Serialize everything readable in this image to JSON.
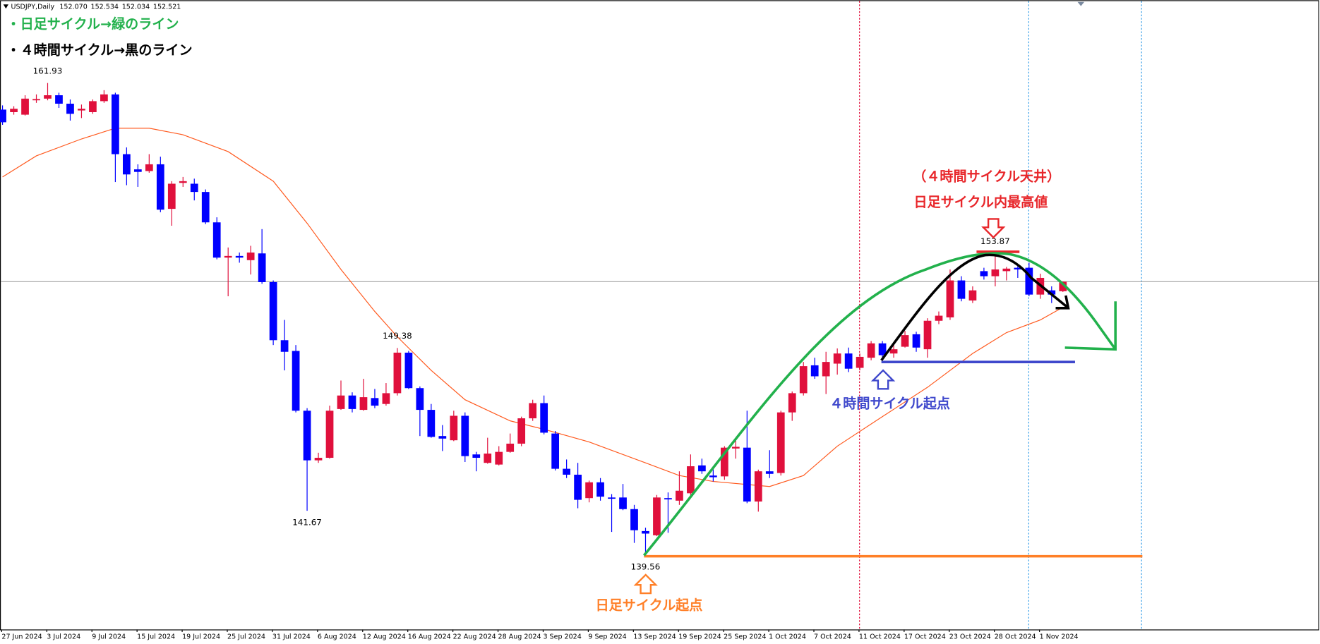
{
  "chart_data": {
    "type": "candlestick",
    "symbol": "USDJPY,Daily",
    "quote_labels": [
      "152.070",
      "152.534",
      "152.034",
      "152.521"
    ],
    "legend_daily": "・日足サイクル→緑のライン",
    "legend_4h": "・４時間サイクル→黒のライン",
    "annotation_top_paren": "（４時間サイクル天井）",
    "annotation_top": "日足サイクル内最高値",
    "annotation_4h_start": "４時間サイクル起点",
    "annotation_daily_start": "日足サイクル起点",
    "up_color": "#e0103c",
    "down_color": "#0000ff",
    "ylim": [
      136.05,
      165.85
    ],
    "categories": [
      "27 Jun 2024",
      null,
      null,
      null,
      "3 Jul 2024",
      null,
      null,
      null,
      "9 Jul 2024",
      null,
      null,
      null,
      "15 Jul 2024",
      null,
      null,
      null,
      "19 Jul 2024",
      null,
      null,
      null,
      "25 Jul 2024",
      null,
      null,
      null,
      "31 Jul 2024",
      null,
      null,
      null,
      "6 Aug 2024",
      null,
      null,
      null,
      "12 Aug 2024",
      null,
      null,
      null,
      "16 Aug 2024",
      null,
      null,
      null,
      "22 Aug 2024",
      null,
      null,
      null,
      "28 Aug 2024",
      null,
      null,
      null,
      "3 Sep 2024",
      null,
      null,
      null,
      "9 Sep 2024",
      null,
      null,
      null,
      "13 Sep 2024",
      null,
      null,
      null,
      "19 Sep 2024",
      null,
      null,
      null,
      "25 Sep 2024",
      null,
      null,
      null,
      "1 Oct 2024",
      null,
      null,
      null,
      "7 Oct 2024",
      null,
      null,
      null,
      "11 Oct 2024",
      null,
      null,
      null,
      "17 Oct 2024",
      null,
      null,
      null,
      "23 Oct 2024",
      null,
      null,
      null,
      "28 Oct 2024",
      null,
      null,
      null,
      "1 Nov 2024",
      null,
      null
    ],
    "ohlc": [
      [
        160.67,
        160.87,
        159.95,
        160.07
      ],
      [
        160.55,
        160.83,
        160.43,
        160.71
      ],
      [
        160.43,
        161.35,
        160.39,
        161.19
      ],
      [
        161.15,
        161.39,
        160.99,
        161.17
      ],
      [
        161.19,
        161.93,
        161.11,
        161.35
      ],
      [
        161.35,
        161.47,
        160.75,
        160.95
      ],
      [
        160.95,
        161.15,
        160.15,
        160.47
      ],
      [
        160.63,
        160.91,
        160.27,
        160.71
      ],
      [
        160.55,
        161.15,
        160.47,
        161.07
      ],
      [
        161.07,
        161.59,
        160.99,
        161.39
      ],
      [
        161.39,
        161.47,
        157.24,
        158.56
      ],
      [
        158.56,
        158.88,
        157.09,
        157.6
      ],
      [
        157.84,
        158.08,
        157.01,
        157.72
      ],
      [
        157.76,
        158.56,
        157.68,
        158.08
      ],
      [
        158.08,
        158.44,
        155.81,
        155.93
      ],
      [
        155.97,
        157.28,
        155.17,
        157.16
      ],
      [
        157.2,
        157.48,
        157.01,
        157.28
      ],
      [
        157.16,
        157.4,
        156.37,
        156.77
      ],
      [
        156.77,
        156.89,
        155.25,
        155.33
      ],
      [
        155.33,
        155.57,
        153.58,
        153.66
      ],
      [
        153.66,
        154.14,
        151.83,
        153.74
      ],
      [
        153.74,
        153.9,
        153.42,
        153.66
      ],
      [
        153.54,
        154.22,
        152.86,
        153.9
      ],
      [
        153.86,
        155.01,
        152.42,
        152.5
      ],
      [
        152.5,
        152.58,
        149.52,
        149.75
      ],
      [
        149.75,
        150.71,
        148.32,
        149.2
      ],
      [
        149.24,
        149.52,
        146.33,
        146.41
      ],
      [
        146.41,
        146.53,
        141.67,
        144.06
      ],
      [
        144.06,
        144.42,
        143.94,
        144.18
      ],
      [
        144.18,
        146.65,
        144.14,
        146.41
      ],
      [
        146.49,
        147.84,
        146.45,
        147.13
      ],
      [
        147.13,
        147.28,
        146.33,
        146.49
      ],
      [
        146.45,
        147.92,
        146.41,
        147.05
      ],
      [
        147.01,
        147.44,
        146.53,
        146.65
      ],
      [
        146.73,
        147.72,
        146.65,
        147.24
      ],
      [
        147.24,
        149.38,
        147.13,
        149.16
      ],
      [
        149.16,
        149.24,
        147.44,
        147.48
      ],
      [
        147.48,
        147.56,
        145.21,
        146.45
      ],
      [
        146.45,
        146.73,
        145.13,
        145.17
      ],
      [
        145.21,
        145.73,
        144.5,
        145.09
      ],
      [
        145.01,
        146.41,
        144.97,
        146.17
      ],
      [
        146.17,
        146.33,
        143.98,
        144.26
      ],
      [
        144.34,
        144.46,
        143.54,
        144.18
      ],
      [
        143.94,
        145.13,
        143.9,
        144.38
      ],
      [
        143.86,
        144.73,
        143.82,
        144.46
      ],
      [
        144.46,
        145.33,
        144.42,
        144.85
      ],
      [
        144.85,
        146.13,
        144.73,
        146.05
      ],
      [
        146.05,
        146.93,
        145.93,
        146.77
      ],
      [
        146.77,
        147.13,
        145.29,
        145.37
      ],
      [
        145.33,
        145.45,
        143.58,
        143.66
      ],
      [
        143.66,
        144.1,
        143.22,
        143.38
      ],
      [
        143.38,
        143.94,
        141.79,
        142.19
      ],
      [
        142.27,
        143.1,
        142.07,
        143.02
      ],
      [
        143.02,
        143.22,
        142.15,
        142.34
      ],
      [
        142.3,
        142.46,
        140.67,
        142.27
      ],
      [
        142.3,
        142.94,
        141.7,
        141.75
      ],
      [
        141.75,
        141.95,
        140.15,
        140.75
      ],
      [
        140.71,
        140.87,
        139.56,
        140.59
      ],
      [
        140.51,
        142.42,
        140.47,
        142.3
      ],
      [
        142.27,
        142.54,
        140.63,
        142.23
      ],
      [
        142.15,
        143.54,
        141.95,
        142.62
      ],
      [
        142.5,
        144.34,
        142.34,
        143.78
      ],
      [
        143.82,
        144.14,
        143.42,
        143.54
      ],
      [
        143.34,
        143.74,
        143.06,
        143.26
      ],
      [
        143.3,
        144.73,
        143.14,
        144.66
      ],
      [
        144.62,
        145.13,
        144.14,
        144.7
      ],
      [
        144.66,
        146.41,
        142.03,
        142.11
      ],
      [
        142.11,
        143.62,
        141.63,
        143.54
      ],
      [
        143.54,
        144.54,
        143.22,
        143.42
      ],
      [
        143.46,
        146.41,
        143.34,
        146.33
      ],
      [
        146.33,
        147.32,
        145.93,
        147.24
      ],
      [
        147.24,
        148.72,
        147.13,
        148.52
      ],
      [
        148.56,
        148.92,
        147.92,
        148.04
      ],
      [
        148.04,
        149.2,
        147.2,
        148.72
      ],
      [
        148.64,
        149.36,
        148.12,
        149.12
      ],
      [
        149.12,
        149.4,
        148.24,
        148.4
      ],
      [
        148.44,
        149.12,
        148.32,
        148.96
      ],
      [
        148.92,
        149.71,
        148.8,
        149.6
      ],
      [
        149.6,
        149.71,
        148.8,
        149.04
      ],
      [
        149.12,
        149.6,
        148.92,
        149.32
      ],
      [
        149.44,
        150.19,
        149.4,
        149.99
      ],
      [
        150.03,
        150.15,
        149.2,
        149.4
      ],
      [
        149.32,
        150.79,
        148.92,
        150.67
      ],
      [
        150.67,
        151.11,
        150.51,
        150.91
      ],
      [
        150.83,
        153.1,
        150.71,
        152.58
      ],
      [
        152.58,
        152.78,
        151.59,
        151.71
      ],
      [
        151.63,
        152.3,
        151.51,
        152.11
      ],
      [
        153.02,
        153.18,
        152.62,
        152.78
      ],
      [
        152.78,
        153.87,
        152.3,
        153.1
      ],
      [
        153.02,
        153.22,
        152.58,
        153.14
      ],
      [
        153.18,
        153.34,
        152.7,
        153.1
      ],
      [
        153.18,
        153.42,
        151.83,
        151.91
      ],
      [
        151.91,
        152.9,
        151.71,
        152.7
      ],
      [
        152.11,
        152.3,
        151.51,
        151.91
      ],
      [
        152.07,
        152.534,
        152.034,
        152.521
      ]
    ],
    "price_labels": [
      161.93,
      149.38,
      141.67,
      139.56,
      153.87
    ],
    "moving_average": {
      "color": "#ff5a1f",
      "x": [
        0,
        3,
        7,
        10,
        13,
        16,
        20,
        24,
        27,
        30,
        33,
        35,
        38,
        41,
        45,
        48,
        52,
        57,
        60,
        63,
        68,
        71,
        74,
        78,
        82,
        86,
        89,
        92,
        94
      ],
      "values": [
        157.48,
        158.48,
        159.28,
        159.79,
        159.79,
        159.48,
        158.68,
        157.28,
        155.29,
        153.1,
        151.11,
        149.91,
        148.32,
        146.93,
        145.93,
        145.53,
        144.93,
        143.94,
        143.34,
        143.06,
        142.82,
        143.34,
        144.73,
        146.13,
        147.52,
        149.12,
        150.11,
        150.71,
        151.31
      ]
    }
  }
}
